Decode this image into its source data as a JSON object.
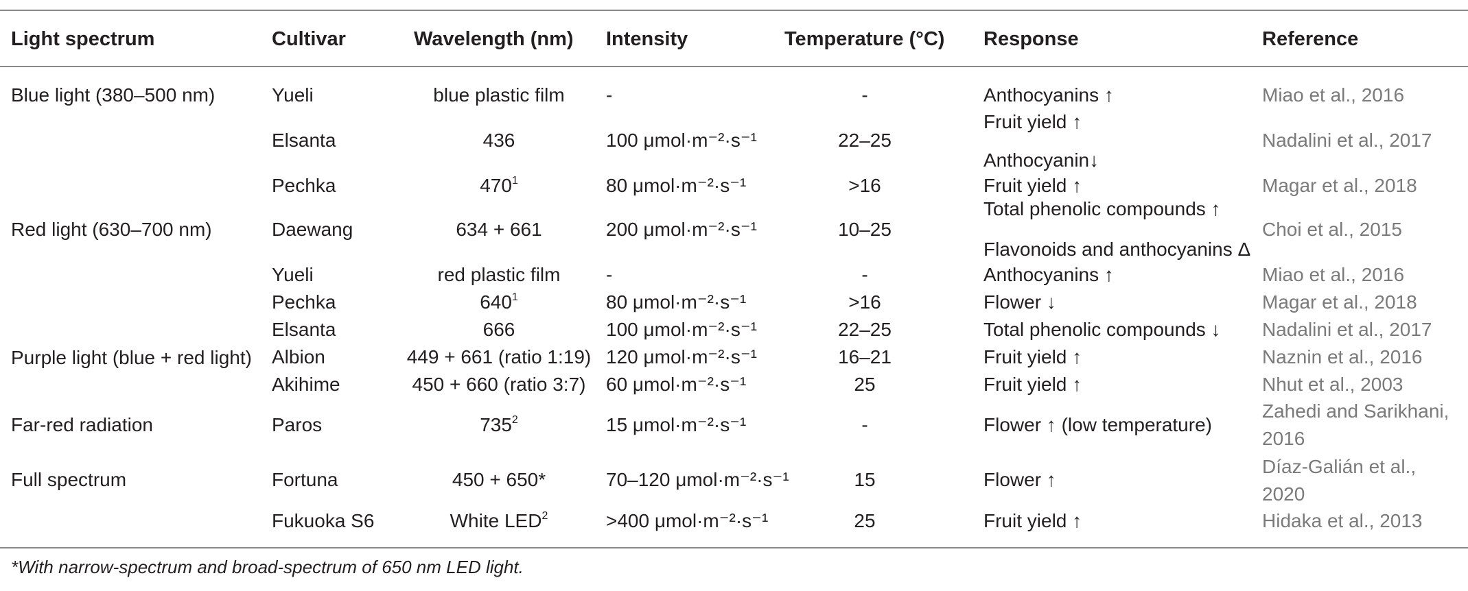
{
  "headers": [
    "Light spectrum",
    "Cultivar",
    "Wavelength (nm)",
    "Intensity",
    "Temperature (°C)",
    "Response",
    "Reference"
  ],
  "spectra": [
    {
      "label": "Blue light (380–500 nm)"
    },
    {
      "label": "Red light (630–700 nm)"
    },
    {
      "label": "Purple light (blue + red light)"
    },
    {
      "label": "Far-red radiation"
    },
    {
      "label": "Full spectrum"
    }
  ],
  "rows": [
    {
      "cultivar": "Yueli",
      "wavelength": "blue plastic film",
      "sup": "",
      "intensity": "-",
      "temperature": "-",
      "response": [
        "Anthocyanins ↑"
      ],
      "reference": [
        "Miao et al., 2016"
      ]
    },
    {
      "cultivar": "Elsanta",
      "wavelength": "436",
      "sup": "",
      "intensity": "100 μmol·m⁻²·s⁻¹",
      "temperature": "22–25",
      "response": [
        "Fruit yield ↑",
        "Anthocyanin↓"
      ],
      "reference": [
        "Nadalini et al., 2017"
      ]
    },
    {
      "cultivar": "Pechka",
      "wavelength": "470",
      "sup": "1",
      "intensity": "80 μmol·m⁻²·s⁻¹",
      "temperature": ">16",
      "response": [
        "Fruit yield ↑"
      ],
      "reference": [
        "Magar et al., 2018"
      ]
    },
    {
      "cultivar": "Daewang",
      "wavelength": "634 + 661",
      "sup": "",
      "intensity": "200 μmol·m⁻²·s⁻¹",
      "temperature": "10–25",
      "response": [
        "Total phenolic compounds ↑",
        "Flavonoids and anthocyanins Δ"
      ],
      "reference": [
        "Choi et al., 2015"
      ]
    },
    {
      "cultivar": "Yueli",
      "wavelength": "red plastic film",
      "sup": "",
      "intensity": "-",
      "temperature": "-",
      "response": [
        "Anthocyanins ↑"
      ],
      "reference": [
        "Miao et al., 2016"
      ]
    },
    {
      "cultivar": "Pechka",
      "wavelength": "640",
      "sup": "1",
      "intensity": "80 μmol·m⁻²·s⁻¹",
      "temperature": ">16",
      "response": [
        "Flower ↓"
      ],
      "reference": [
        "Magar et al., 2018"
      ]
    },
    {
      "cultivar": "Elsanta",
      "wavelength": "666",
      "sup": "",
      "intensity": "100 μmol·m⁻²·s⁻¹",
      "temperature": "22–25",
      "response": [
        "Total phenolic compounds ↓"
      ],
      "reference": [
        "Nadalini et al., 2017"
      ]
    },
    {
      "cultivar": "Albion",
      "wavelength": "449 + 661 (ratio 1:19)",
      "sup": "",
      "intensity": "120 μmol·m⁻²·s⁻¹",
      "temperature": "16–21",
      "response": [
        "Fruit yield ↑"
      ],
      "reference": [
        "Naznin et al., 2016"
      ]
    },
    {
      "cultivar": "Akihime",
      "wavelength": "450 + 660 (ratio 3:7)",
      "sup": "",
      "intensity": "60 μmol·m⁻²·s⁻¹",
      "temperature": "25",
      "response": [
        "Fruit yield ↑"
      ],
      "reference": [
        "Nhut et al., 2003"
      ]
    },
    {
      "cultivar": "Paros",
      "wavelength": "735",
      "sup": "2",
      "intensity": "15 μmol·m⁻²·s⁻¹",
      "temperature": "-",
      "response": [
        "Flower ↑ (low temperature)"
      ],
      "reference": [
        "Zahedi and Sarikhani,",
        "2016"
      ]
    },
    {
      "cultivar": "Fortuna",
      "wavelength": "450 + 650*",
      "sup": "",
      "intensity": "70–120 μmol·m⁻²·s⁻¹",
      "temperature": "15",
      "response": [
        "Flower ↑"
      ],
      "reference": [
        "Díaz-Galián et al.,",
        "2020"
      ]
    },
    {
      "cultivar": "Fukuoka S6",
      "wavelength": "White LED",
      "sup": "2",
      "intensity": ">400 μmol·m⁻²·s⁻¹",
      "temperature": "25",
      "response": [
        "Fruit yield ↑"
      ],
      "reference": [
        "Hidaka et al., 2013"
      ]
    }
  ],
  "footnote": "*With narrow-spectrum and broad-spectrum of 650 nm LED light."
}
